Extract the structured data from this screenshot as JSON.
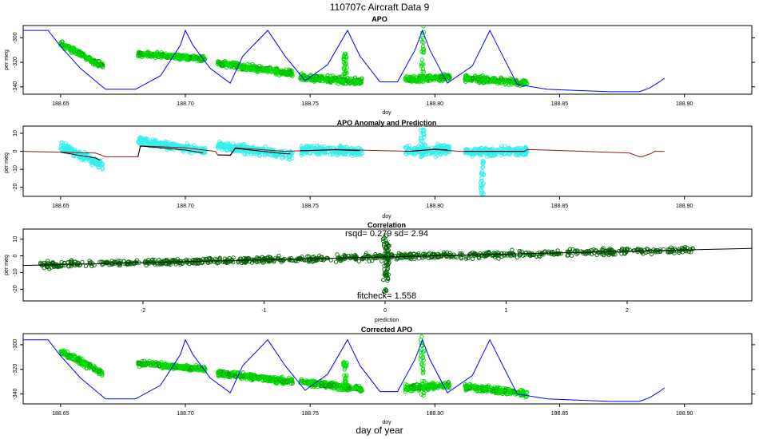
{
  "figure": {
    "main_title": "110707c   Aircraft Data 9",
    "bottom_label": "day of year"
  },
  "colors": {
    "apo_points": "#00dd00",
    "apo_points_dark": "#00a000",
    "anomaly_points": "#33eeee",
    "prediction_line": "#8b1a1a",
    "fit_line": "#000000",
    "correlation_points": "#006400",
    "altitude_line": "#0000ff"
  },
  "chart_data": [
    {
      "type": "scatter",
      "title": "APO",
      "xlabel": "doy",
      "ylabel": "per meg",
      "xlim": [
        188.635,
        188.927
      ],
      "ylim": [
        -346,
        -290
      ],
      "xticks": [
        "188.65",
        "188.70",
        "188.75",
        "188.80",
        "188.85",
        "188.90"
      ],
      "yticks": [
        "-300",
        "-320",
        "-340"
      ],
      "segments": [
        {
          "x0": 188.65,
          "x1": 188.667,
          "y0": -305,
          "y1": -323,
          "spread": 6
        },
        {
          "x0": 188.681,
          "x1": 188.708,
          "y0": -313,
          "y1": -317,
          "spread": 5
        },
        {
          "x0": 188.713,
          "x1": 188.743,
          "y0": -321,
          "y1": -329,
          "spread": 6
        },
        {
          "x0": 188.746,
          "x1": 188.771,
          "y0": -332,
          "y1": -336,
          "spread": 6
        },
        {
          "x0": 188.788,
          "x1": 188.806,
          "y0": -334,
          "y1": -332,
          "spread": 7
        },
        {
          "x0": 188.812,
          "x1": 188.837,
          "y0": -333,
          "y1": -337,
          "spread": 6
        }
      ],
      "spikes": [
        {
          "x": 188.795,
          "y_top": -290,
          "y_bottom": -340
        },
        {
          "x": 188.764,
          "y_top": -313,
          "y_bottom": -330
        }
      ],
      "altitude_line": {
        "x": [
          188.635,
          188.645,
          188.65,
          188.658,
          188.668,
          188.68,
          188.69,
          188.698,
          188.7,
          188.703,
          188.71,
          188.718,
          188.723,
          188.733,
          188.74,
          188.748,
          188.757,
          188.765,
          188.77,
          188.778,
          188.785,
          188.792,
          188.795,
          188.798,
          188.805,
          188.815,
          188.822,
          188.826,
          188.833,
          188.845,
          188.87,
          188.882,
          188.886,
          188.89,
          188.892
        ],
        "y": [
          -294,
          -294,
          -307,
          -325,
          -342,
          -342,
          -331,
          -306,
          -294,
          -306,
          -325,
          -337,
          -315,
          -294,
          -315,
          -335,
          -322,
          -294,
          -315,
          -336,
          -336,
          -310,
          -294,
          -310,
          -337,
          -323,
          -294,
          -310,
          -338,
          -342,
          -344,
          -344,
          -341,
          -336,
          -333
        ]
      }
    },
    {
      "type": "scatter",
      "title": "APO Anomaly and Prediction",
      "xlabel": "doy",
      "ylabel": "per meg",
      "xlim": [
        188.635,
        188.927
      ],
      "ylim": [
        -25,
        14
      ],
      "xticks": [
        "188.65",
        "188.70",
        "188.75",
        "188.80",
        "188.85",
        "188.90"
      ],
      "yticks": [
        "10",
        "0",
        "-10",
        "-20"
      ],
      "segments": [
        {
          "x0": 188.65,
          "x1": 188.667,
          "y0": 3,
          "y1": -8,
          "spread": 6
        },
        {
          "x0": 188.681,
          "x1": 188.708,
          "y0": 6,
          "y1": 0,
          "spread": 5
        },
        {
          "x0": 188.713,
          "x1": 188.743,
          "y0": 3,
          "y1": -2,
          "spread": 6
        },
        {
          "x0": 188.746,
          "x1": 188.771,
          "y0": 1,
          "y1": 0,
          "spread": 6
        },
        {
          "x0": 188.788,
          "x1": 188.806,
          "y0": 0,
          "y1": 1,
          "spread": 7
        },
        {
          "x0": 188.812,
          "x1": 188.837,
          "y0": 0,
          "y1": 0,
          "spread": 6
        }
      ],
      "spikes": [
        {
          "x": 188.795,
          "y_top": 15,
          "y_bottom": -3
        },
        {
          "x": 188.819,
          "y_top": -5,
          "y_bottom": -24
        }
      ],
      "prediction_line": {
        "x": [
          188.635,
          188.664,
          188.668,
          188.681,
          188.682,
          188.7,
          188.712,
          188.713,
          188.718,
          188.72,
          188.74,
          188.76,
          188.79,
          188.8,
          188.81,
          188.836,
          188.837,
          188.86,
          188.878,
          188.882,
          188.883,
          188.887,
          188.888,
          188.892
        ],
        "y": [
          0,
          -1,
          -3,
          -3,
          3,
          2,
          0,
          -2,
          -2,
          2,
          0,
          1,
          0,
          1,
          0,
          0,
          1,
          0,
          -1,
          -3,
          -3,
          -1,
          0,
          0
        ]
      }
    },
    {
      "type": "scatter",
      "title": "Correlation",
      "xlabel": "prediction",
      "ylabel": "per meg",
      "annotations": [
        "rsqd= 0.279 sd= 2.94",
        "fitcheck= 1.558"
      ],
      "xlim": [
        -2.99,
        3.03
      ],
      "ylim": [
        -27,
        16
      ],
      "xticks": [
        "-2",
        "-1",
        "0",
        "1",
        "2"
      ],
      "xtick_values": [
        -2,
        -1,
        0,
        1,
        2
      ],
      "yticks": [
        "10",
        "0",
        "-10",
        "-20"
      ],
      "fit_line": {
        "slope": 1.7,
        "intercept": -0.7
      },
      "cloud": {
        "x0": -2.85,
        "x1": 2.55,
        "spread": 5
      },
      "spikes": [
        {
          "x": 0.0,
          "y_top": 14,
          "y_bottom": -22
        },
        {
          "x": 0.02,
          "y_top": 8,
          "y_bottom": -15
        }
      ]
    },
    {
      "type": "scatter",
      "title": "Corrected APO",
      "xlabel": "doy",
      "ylabel": "",
      "xlim": [
        188.635,
        188.927
      ],
      "ylim": [
        -348,
        -291
      ],
      "xticks": [
        "188.65",
        "188.70",
        "188.75",
        "188.80",
        "188.85",
        "188.90"
      ],
      "yticks": [
        "-300",
        "-320",
        "-340"
      ],
      "segments": [
        {
          "x0": 188.65,
          "x1": 188.667,
          "y0": -305,
          "y1": -323,
          "spread": 6
        },
        {
          "x0": 188.681,
          "x1": 188.708,
          "y0": -315,
          "y1": -320,
          "spread": 5
        },
        {
          "x0": 188.713,
          "x1": 188.743,
          "y0": -323,
          "y1": -330,
          "spread": 6
        },
        {
          "x0": 188.746,
          "x1": 188.771,
          "y0": -330,
          "y1": -336,
          "spread": 6
        },
        {
          "x0": 188.788,
          "x1": 188.806,
          "y0": -335,
          "y1": -333,
          "spread": 7
        },
        {
          "x0": 188.812,
          "x1": 188.837,
          "y0": -334,
          "y1": -340,
          "spread": 6
        }
      ],
      "spikes": [
        {
          "x": 188.795,
          "y_top": -293,
          "y_bottom": -341
        },
        {
          "x": 188.764,
          "y_top": -314,
          "y_bottom": -332
        }
      ],
      "altitude_line": {
        "x": [
          188.635,
          188.645,
          188.65,
          188.658,
          188.668,
          188.68,
          188.69,
          188.698,
          188.7,
          188.703,
          188.71,
          188.718,
          188.723,
          188.733,
          188.74,
          188.748,
          188.757,
          188.765,
          188.77,
          188.778,
          188.785,
          188.792,
          188.795,
          188.798,
          188.805,
          188.815,
          188.822,
          188.826,
          188.833,
          188.845,
          188.87,
          188.882,
          188.886,
          188.89,
          188.892
        ],
        "y": [
          -296,
          -296,
          -309,
          -327,
          -344,
          -344,
          -333,
          -308,
          -296,
          -308,
          -327,
          -339,
          -317,
          -296,
          -317,
          -337,
          -324,
          -296,
          -317,
          -338,
          -338,
          -312,
          -296,
          -312,
          -339,
          -325,
          -296,
          -312,
          -340,
          -344,
          -346,
          -346,
          -343,
          -338,
          -335
        ]
      }
    }
  ]
}
